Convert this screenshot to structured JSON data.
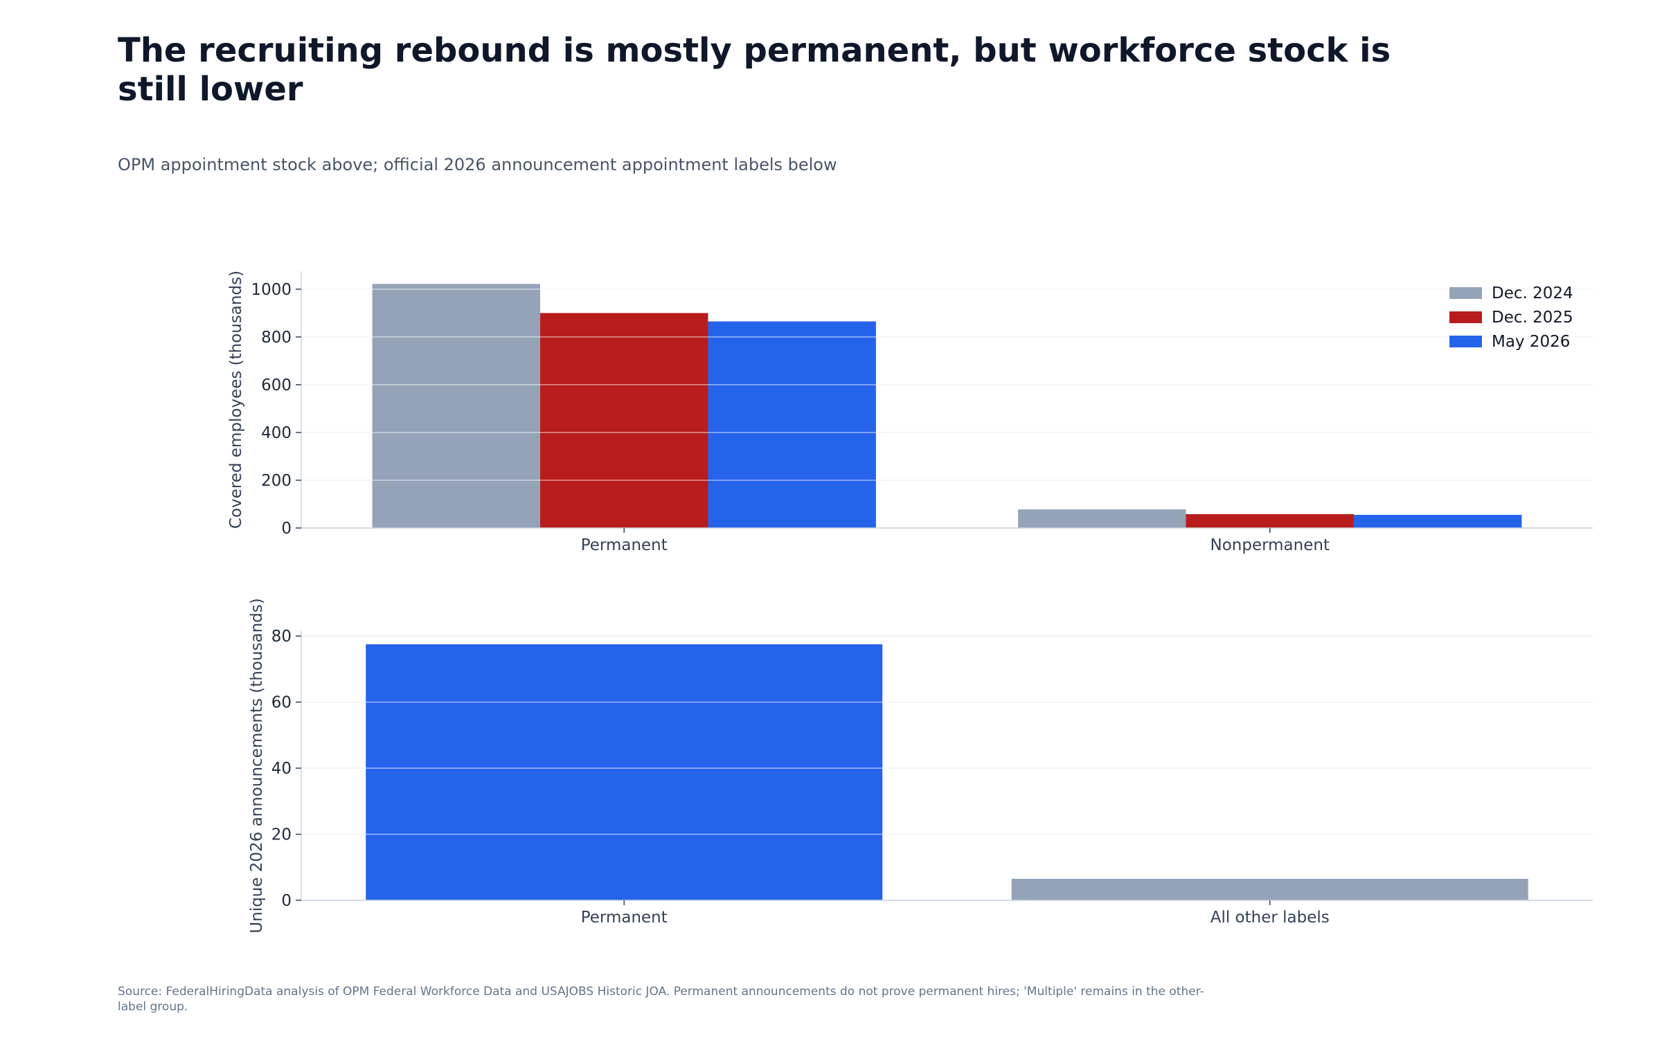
{
  "title": "The recruiting rebound is mostly permanent, but workforce stock is still lower",
  "subtitle": "OPM appointment stock above; official 2026 announcement appointment labels below",
  "source": "Source: FederalHiringData analysis of OPM Federal Workforce Data and USAJOBS Historic JOA. Permanent announcements do not prove permanent hires; 'Multiple' remains in the other-label group.",
  "colors": {
    "gray": "#94a3b8",
    "red": "#b91c1c",
    "blue": "#2563eb",
    "grid": "#e2e8f0",
    "axis": "#cbd5e1",
    "text": "#334155"
  },
  "chart_data": [
    {
      "type": "bar",
      "categories": [
        "Permanent",
        "Nonpermanent"
      ],
      "series": [
        {
          "name": "Dec. 2024",
          "color": "#94a3b8",
          "values": [
            1022,
            78
          ]
        },
        {
          "name": "Dec. 2025",
          "color": "#b91c1c",
          "values": [
            900,
            58
          ]
        },
        {
          "name": "May 2026",
          "color": "#2563eb",
          "values": [
            865,
            55
          ]
        }
      ],
      "ylabel": "Covered employees (thousands)",
      "ylim": [
        0,
        1075
      ],
      "yticks": [
        0,
        200,
        400,
        600,
        800,
        1000
      ],
      "grid": true,
      "legend": "top-right"
    },
    {
      "type": "bar",
      "categories": [
        "Permanent",
        "All other labels"
      ],
      "values": [
        77.5,
        6.5
      ],
      "colors": [
        "#2563eb",
        "#94a3b8"
      ],
      "ylabel": "Unique 2026 announcements (thousands)",
      "ylim": [
        0,
        81.5
      ],
      "yticks": [
        0,
        20,
        40,
        60,
        80
      ],
      "grid": true
    }
  ]
}
